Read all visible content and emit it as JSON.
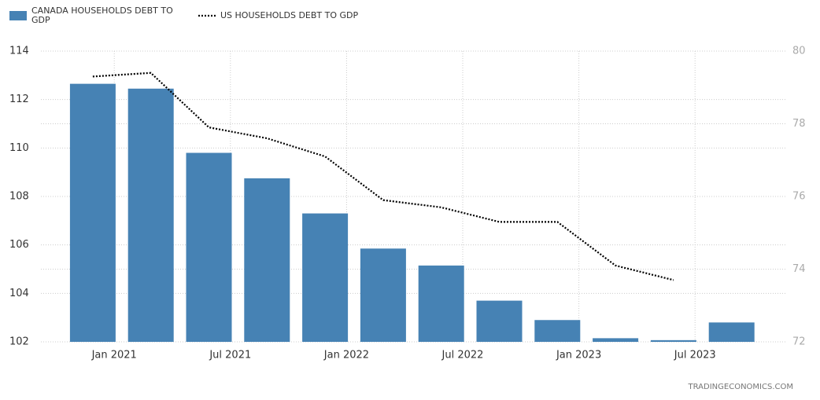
{
  "chart_data": {
    "type": "bar-line",
    "x_labels": [
      "Jan 2021",
      "Jul 2021",
      "Jan 2022",
      "Jul 2022",
      "Jan 2023",
      "Jul 2023"
    ],
    "series": [
      {
        "name": "CANADA HOUSEHOLDS DEBT TO GDP",
        "type": "bar",
        "axis": "y",
        "color": "#4682b4",
        "values": [
          112.65,
          112.45,
          109.8,
          108.75,
          107.3,
          105.85,
          105.15,
          103.7,
          102.9,
          102.15,
          102.07,
          102.8
        ]
      },
      {
        "name": "US HOUSEHOLDS DEBT TO GDP",
        "type": "line",
        "axis": "y2",
        "color": "#000000",
        "values": [
          79.3,
          79.4,
          77.9,
          77.6,
          77.1,
          75.9,
          75.7,
          75.3,
          75.3,
          74.1,
          73.7,
          null
        ]
      }
    ],
    "ylim": [
      102,
      114
    ],
    "yticks": [
      102,
      104,
      106,
      108,
      110,
      112,
      114
    ],
    "y2lim": [
      72,
      80
    ],
    "y2ticks": [
      72,
      74,
      76,
      78,
      80
    ],
    "grid": true,
    "source": "TRADINGECONOMICS.COM"
  }
}
